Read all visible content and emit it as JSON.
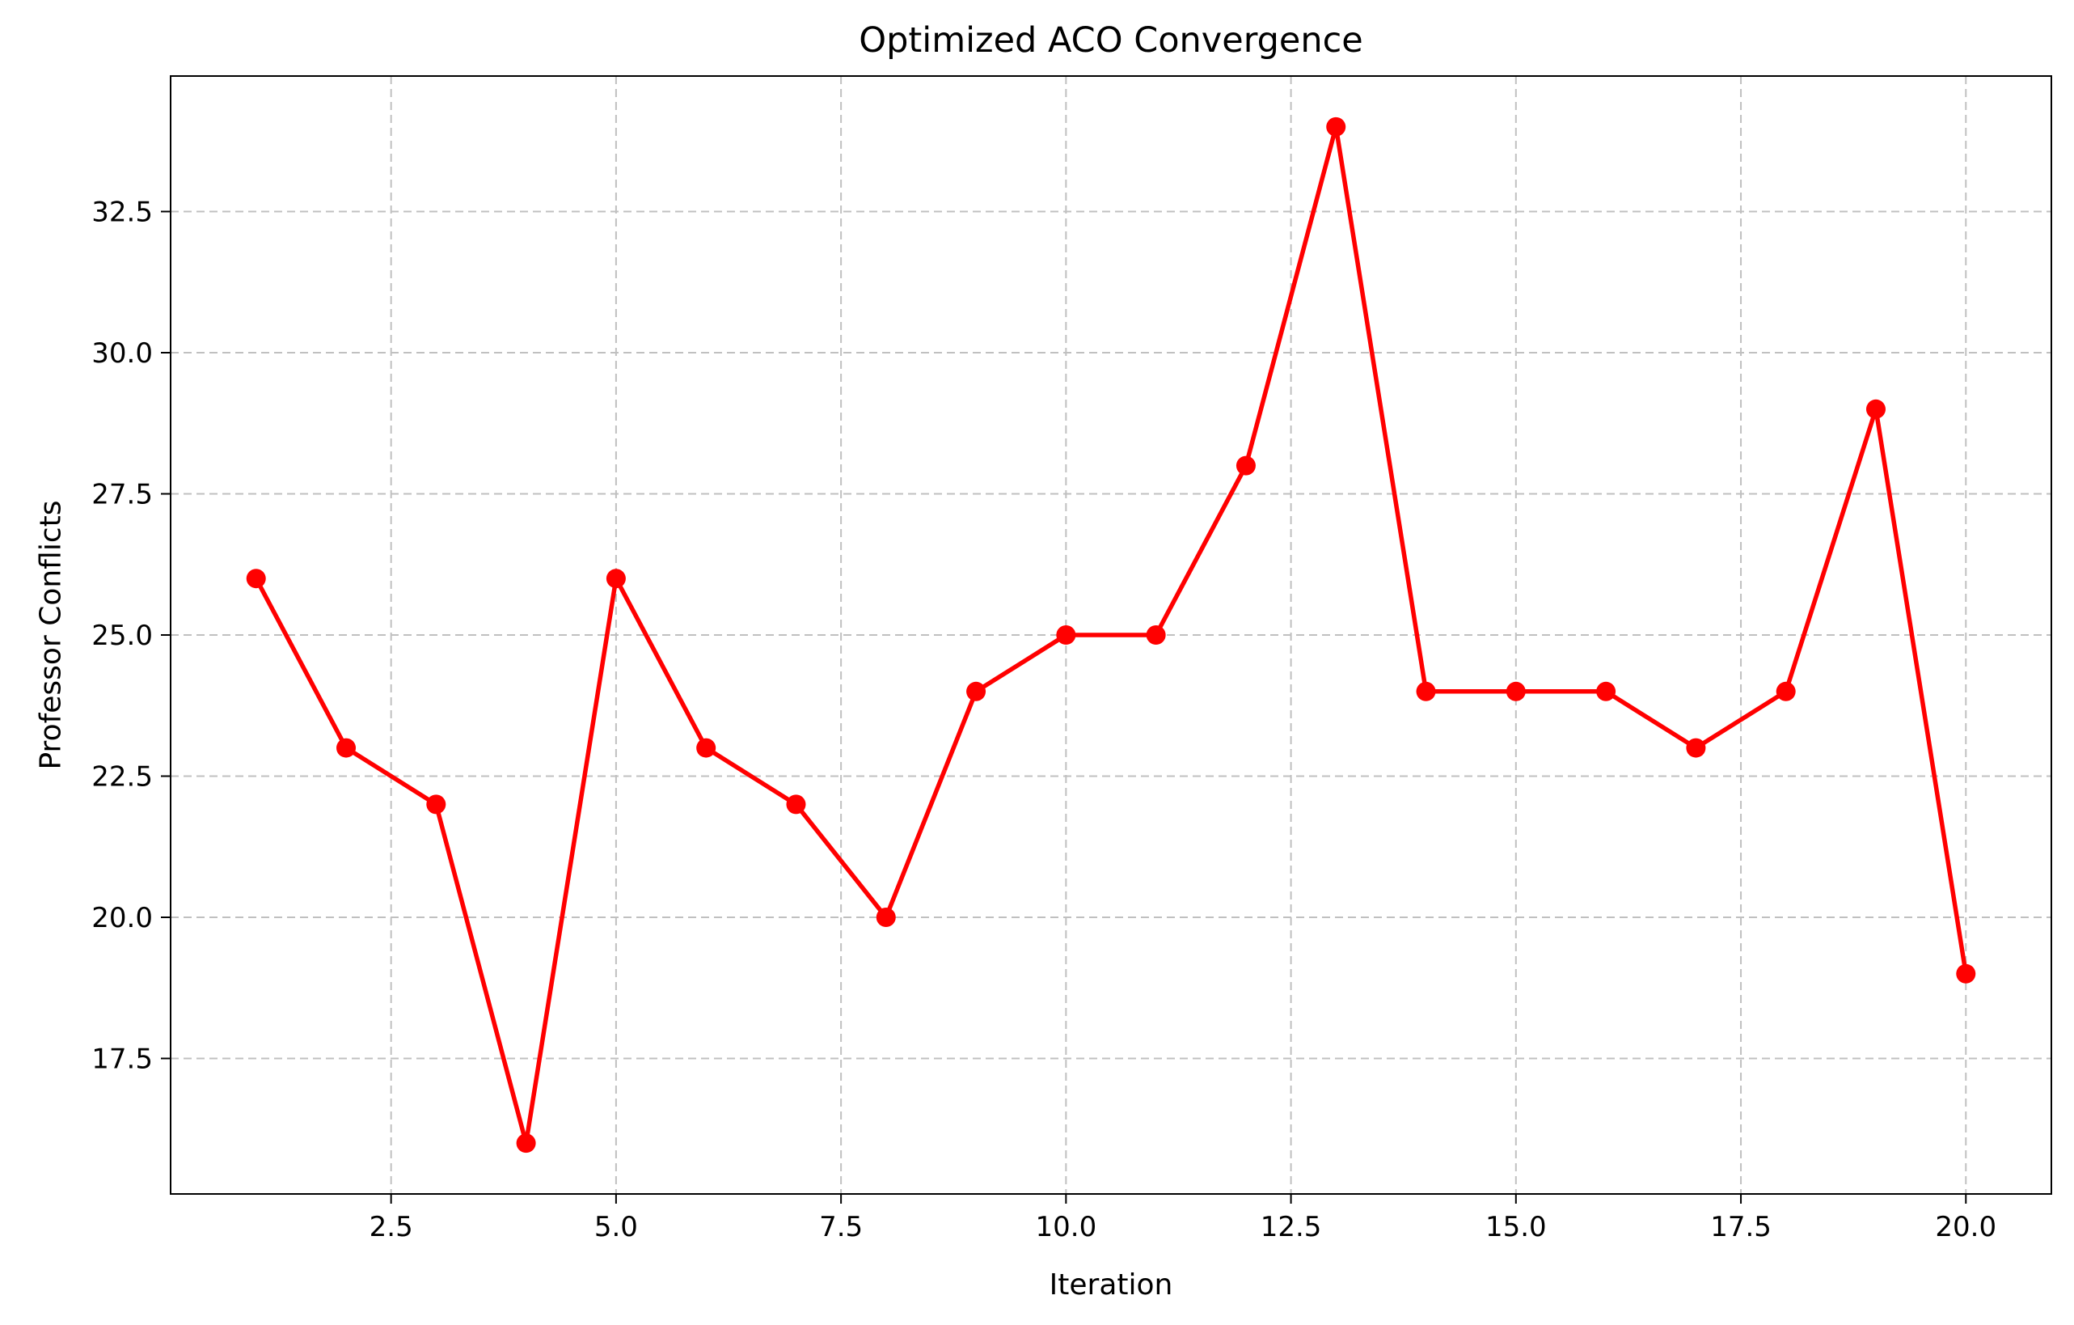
{
  "chart_data": {
    "type": "line",
    "title": "Optimized ACO Convergence",
    "xlabel": "Iteration",
    "ylabel": "Professor Conflicts",
    "x": [
      1,
      2,
      3,
      4,
      5,
      6,
      7,
      8,
      9,
      10,
      11,
      12,
      13,
      14,
      15,
      16,
      17,
      18,
      19,
      20
    ],
    "series": [
      {
        "values": [
          26,
          23,
          22,
          16,
          26,
          23,
          22,
          20,
          24,
          25,
          25,
          28,
          34,
          24,
          24,
          24,
          23,
          24,
          29,
          19
        ],
        "color": "#ff0000",
        "marker": "circle"
      }
    ],
    "xlim": [
      0.05,
      20.95
    ],
    "ylim": [
      15.1,
      34.9
    ],
    "xticks": [
      2.5,
      5.0,
      7.5,
      10.0,
      12.5,
      15.0,
      17.5,
      20.0
    ],
    "xtick_labels": [
      "2.5",
      "5.0",
      "7.5",
      "10.0",
      "12.5",
      "15.0",
      "17.5",
      "20.0"
    ],
    "yticks": [
      17.5,
      20.0,
      22.5,
      25.0,
      27.5,
      30.0,
      32.5
    ],
    "ytick_labels": [
      "17.5",
      "20.0",
      "22.5",
      "25.0",
      "27.5",
      "30.0",
      "32.5"
    ],
    "grid": true,
    "grid_style": "dashed",
    "legend": false
  }
}
